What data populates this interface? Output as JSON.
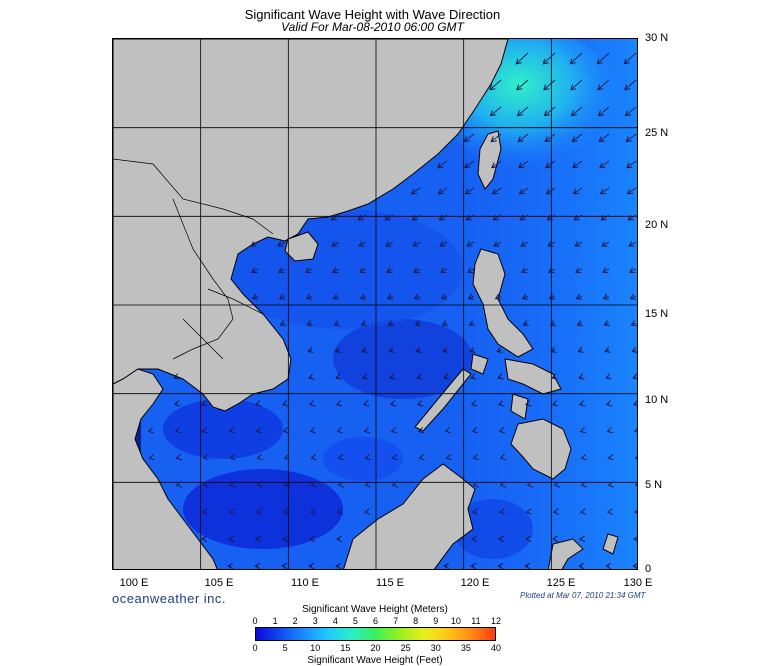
{
  "header": {
    "title": "Significant Wave Height with Wave Direction",
    "subtitle": "Valid For Mar-08-2010 06:00 GMT"
  },
  "map": {
    "latitude_labels": [
      "30 N",
      "25 N",
      "20 N",
      "15 N",
      "10 N",
      "5 N",
      "0"
    ],
    "longitude_labels": [
      "100 E",
      "105 E",
      "110 E",
      "115 E",
      "120 E",
      "125 E",
      "130 E"
    ],
    "extent": {
      "lon_min": 100,
      "lon_max": 130,
      "lat_min": 0,
      "lat_max": 30
    },
    "grid": true,
    "land_color": "#c0c0c0",
    "arrow_color": "#1a1a4a"
  },
  "footer": {
    "brand": "oceanweather inc.",
    "plotted": "Plotted at Mar 07, 2010 21:34 GMT"
  },
  "legend": {
    "title_meters": "Significant Wave Height (Meters)",
    "title_feet": "Significant Wave Height (Feet)",
    "meter_ticks": [
      "0",
      "1",
      "2",
      "3",
      "4",
      "5",
      "6",
      "7",
      "8",
      "9",
      "10",
      "11",
      "12"
    ],
    "feet_ticks": [
      "0",
      "5",
      "10",
      "15",
      "20",
      "25",
      "30",
      "35",
      "40"
    ],
    "gradient_colors": [
      "#0a0adc",
      "#0f4af0",
      "#1a8cff",
      "#22c8ff",
      "#26f0c8",
      "#3cf05a",
      "#96f01e",
      "#e6f01e",
      "#ffc814",
      "#ff8c14",
      "#ff3c14"
    ]
  }
}
